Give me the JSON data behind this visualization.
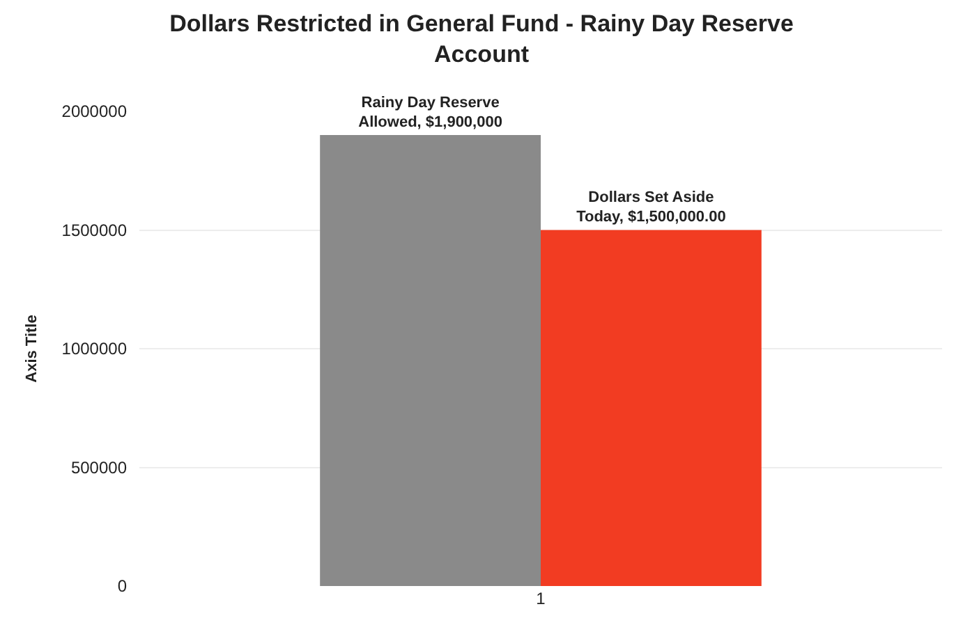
{
  "chart_data": {
    "type": "bar",
    "title": "Dollars Restricted in General Fund - Rainy Day Reserve Account",
    "ylabel": "Axis Title",
    "categories": [
      "1"
    ],
    "series": [
      {
        "color": "#8a8a8a",
        "values": [
          1900000
        ],
        "value_labels": [
          "Rainy Day Reserve Allowed, $1,900,000"
        ]
      },
      {
        "color": "#f23c22",
        "values": [
          1500000
        ],
        "value_labels": [
          "Dollars Set Aside Today, $1,500,000.00"
        ]
      }
    ],
    "grid": "y",
    "ylim": [
      0,
      2000000
    ],
    "yticks": [
      {
        "value": 0,
        "label": "0"
      },
      {
        "value": 500000,
        "label": "500000"
      },
      {
        "value": 1000000,
        "label": "1000000"
      },
      {
        "value": 1500000,
        "label": "1500000"
      },
      {
        "value": 2000000,
        "label": "2000000"
      }
    ]
  }
}
